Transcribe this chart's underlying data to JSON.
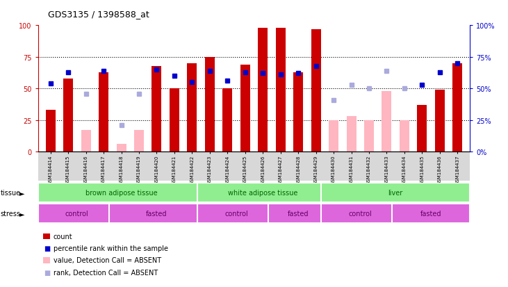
{
  "title": "GDS3135 / 1398588_at",
  "samples": [
    "GSM184414",
    "GSM184415",
    "GSM184416",
    "GSM184417",
    "GSM184418",
    "GSM184419",
    "GSM184420",
    "GSM184421",
    "GSM184422",
    "GSM184423",
    "GSM184424",
    "GSM184425",
    "GSM184426",
    "GSM184427",
    "GSM184428",
    "GSM184429",
    "GSM184430",
    "GSM184431",
    "GSM184432",
    "GSM184433",
    "GSM184434",
    "GSM184435",
    "GSM184436",
    "GSM184437"
  ],
  "count": [
    33,
    58,
    null,
    63,
    null,
    null,
    68,
    50,
    70,
    75,
    50,
    69,
    98,
    98,
    63,
    97,
    null,
    null,
    null,
    null,
    null,
    37,
    49,
    70
  ],
  "rank": [
    54,
    63,
    null,
    64,
    null,
    null,
    65,
    60,
    55,
    64,
    56,
    63,
    62,
    61,
    62,
    68,
    null,
    null,
    null,
    null,
    null,
    53,
    63,
    70
  ],
  "count_absent": [
    null,
    null,
    17,
    null,
    6,
    17,
    null,
    null,
    null,
    null,
    null,
    null,
    null,
    null,
    null,
    null,
    25,
    28,
    25,
    48,
    25,
    null,
    null,
    null
  ],
  "rank_absent": [
    null,
    null,
    46,
    null,
    21,
    46,
    null,
    null,
    null,
    null,
    null,
    null,
    null,
    null,
    null,
    null,
    41,
    53,
    50,
    64,
    50,
    null,
    null,
    null
  ],
  "tissue_groups": [
    {
      "label": "brown adipose tissue",
      "start": 0,
      "end": 9
    },
    {
      "label": "white adipose tissue",
      "start": 9,
      "end": 16
    },
    {
      "label": "liver",
      "start": 16,
      "end": 24
    }
  ],
  "stress_groups": [
    {
      "label": "control",
      "start": 0,
      "end": 4
    },
    {
      "label": "fasted",
      "start": 4,
      "end": 9
    },
    {
      "label": "control",
      "start": 9,
      "end": 13
    },
    {
      "label": "fasted",
      "start": 13,
      "end": 16
    },
    {
      "label": "control",
      "start": 16,
      "end": 20
    },
    {
      "label": "fasted",
      "start": 20,
      "end": 24
    }
  ],
  "bar_width": 0.55,
  "ylim": [
    0,
    100
  ],
  "grid_vals": [
    25,
    50,
    75
  ],
  "count_color": "#CC0000",
  "rank_color": "#0000CC",
  "count_absent_color": "#FFB6C1",
  "rank_absent_color": "#AAAADD",
  "tissue_color": "#90EE90",
  "tissue_label_color": "#006400",
  "stress_color": "#DD66DD",
  "stress_label_color": "#660066",
  "right_axis_color": "#0000CC",
  "xticklabel_bg": "#DDDDDD"
}
